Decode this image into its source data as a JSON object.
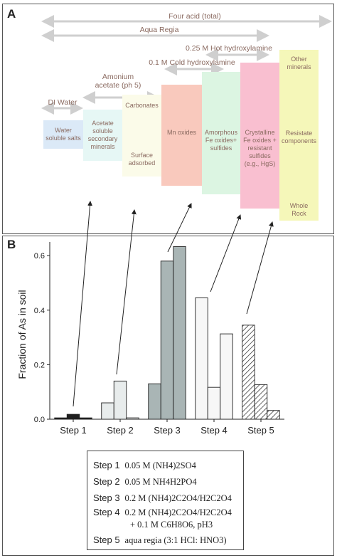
{
  "panel_a": {
    "letter": "A",
    "ranges": {
      "four_acid": "Four acid (total)",
      "aqua_regia": "Aqua Regia",
      "hot_hydroxylamine": "0.25 M Hot hydroxylamine",
      "cold_hydroxylamine": "0.1 M Cold hydroxylamine",
      "amonium_acetate": "Amonium\nacetate (ph 5)",
      "di_water": "DI Water"
    },
    "boxes": {
      "water_soluble": "Water\nsoluble salts",
      "acetate_soluble": "Acetate\nsoluble\nsecondary\nminerals",
      "carbonates": "Carbonates",
      "surface_adsorbed": "Surface\nadsorbed",
      "mn_oxides": "Mn oxides",
      "amorphous": "Amorphous\nFe oxides+\nsulfides",
      "crystalline": "Crystalline\nFe oxides +\nresistant\nsulfides\n(e.g., HgS)",
      "other_minerals": "Other\nminerals",
      "resistate": "Resistate\ncomponents",
      "whole_rock": "Whole\nRock"
    },
    "colors": {
      "water": "#dbe9f7",
      "acetate": "#e6f7f5",
      "carbonates": "#fbfbe9",
      "mn": "#f9c9bd",
      "amorphous": "#dcf5e2",
      "crystalline": "#f9bfd0",
      "resistate": "#f5f7b9",
      "arrow": "#cfcfcf"
    }
  },
  "panel_b": {
    "letter": "B",
    "legend": [
      {
        "step": "Step 1",
        "desc": "0.05 M (NH4)2SO4"
      },
      {
        "step": "Step 2",
        "desc": "0.05 M NH4H2PO4"
      },
      {
        "step": "Step 3",
        "desc": "0.2 M (NH4)2C2O4/H2C2O4"
      },
      {
        "step": "Step 4",
        "desc": "0.2 M (NH4)2C2O4/H2C2O4"
      },
      {
        "step": "",
        "desc": "+ 0.1 M C6H8O6, pH3"
      },
      {
        "step": "Step 5",
        "desc": "aqua regia (3:1 HCl: HNO3)"
      }
    ]
  },
  "chart_data": {
    "type": "bar",
    "title": "",
    "xlabel": "",
    "ylabel": "Fraction of As in soil",
    "ylim": [
      0,
      0.65
    ],
    "yticks": [
      "0.0",
      "0.2",
      "0.4",
      "0.6"
    ],
    "categories": [
      "Step 1",
      "Step 2",
      "Step 3",
      "Step 4",
      "Step 5"
    ],
    "series": [
      {
        "values": [
          0.005,
          0.06,
          0.13,
          0.445,
          0.345
        ]
      },
      {
        "values": [
          0.018,
          0.14,
          0.58,
          0.117,
          0.127
        ]
      },
      {
        "values": [
          0.005,
          0.005,
          0.633,
          0.313,
          0.032
        ]
      }
    ],
    "bar_fills": [
      "#1f1f1f",
      "#e8ecec",
      "#a9b5b5",
      "#f7f7f7",
      "hatch"
    ],
    "grid": false
  }
}
